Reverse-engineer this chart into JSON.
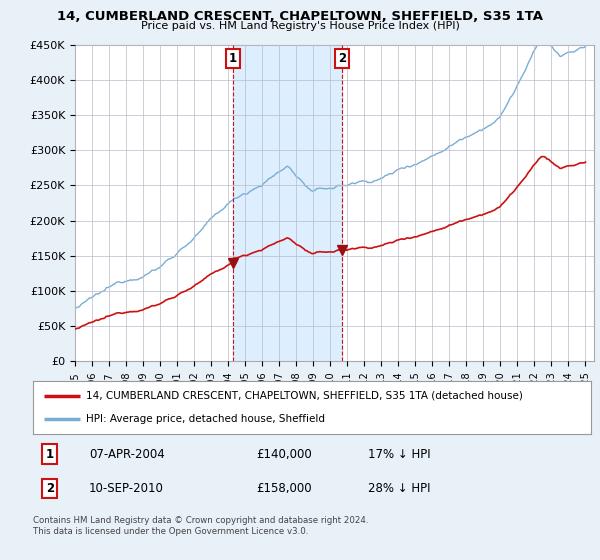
{
  "title": "14, CUMBERLAND CRESCENT, CHAPELTOWN, SHEFFIELD, S35 1TA",
  "subtitle": "Price paid vs. HM Land Registry's House Price Index (HPI)",
  "ylabel_ticks": [
    "£0",
    "£50K",
    "£100K",
    "£150K",
    "£200K",
    "£250K",
    "£300K",
    "£350K",
    "£400K",
    "£450K"
  ],
  "ytick_values": [
    0,
    50000,
    100000,
    150000,
    200000,
    250000,
    300000,
    350000,
    400000,
    450000
  ],
  "ylim": [
    0,
    450000
  ],
  "xlim_start": 1995.0,
  "xlim_end": 2025.5,
  "hpi_color": "#7aadd4",
  "price_color": "#cc1111",
  "vline_color": "#cc1111",
  "shade_color": "#ddeeff",
  "sale1_x": 2004.27,
  "sale1_y": 140000,
  "sale2_x": 2010.7,
  "sale2_y": 158000,
  "legend_entry1": "14, CUMBERLAND CRESCENT, CHAPELTOWN, SHEFFIELD, S35 1TA (detached house)",
  "legend_entry2": "HPI: Average price, detached house, Sheffield",
  "table_row1": [
    "1",
    "07-APR-2004",
    "£140,000",
    "17% ↓ HPI"
  ],
  "table_row2": [
    "2",
    "10-SEP-2010",
    "£158,000",
    "28% ↓ HPI"
  ],
  "footer": "Contains HM Land Registry data © Crown copyright and database right 2024.\nThis data is licensed under the Open Government Licence v3.0.",
  "background_color": "#e8f0f8",
  "plot_bg_color": "#ffffff"
}
